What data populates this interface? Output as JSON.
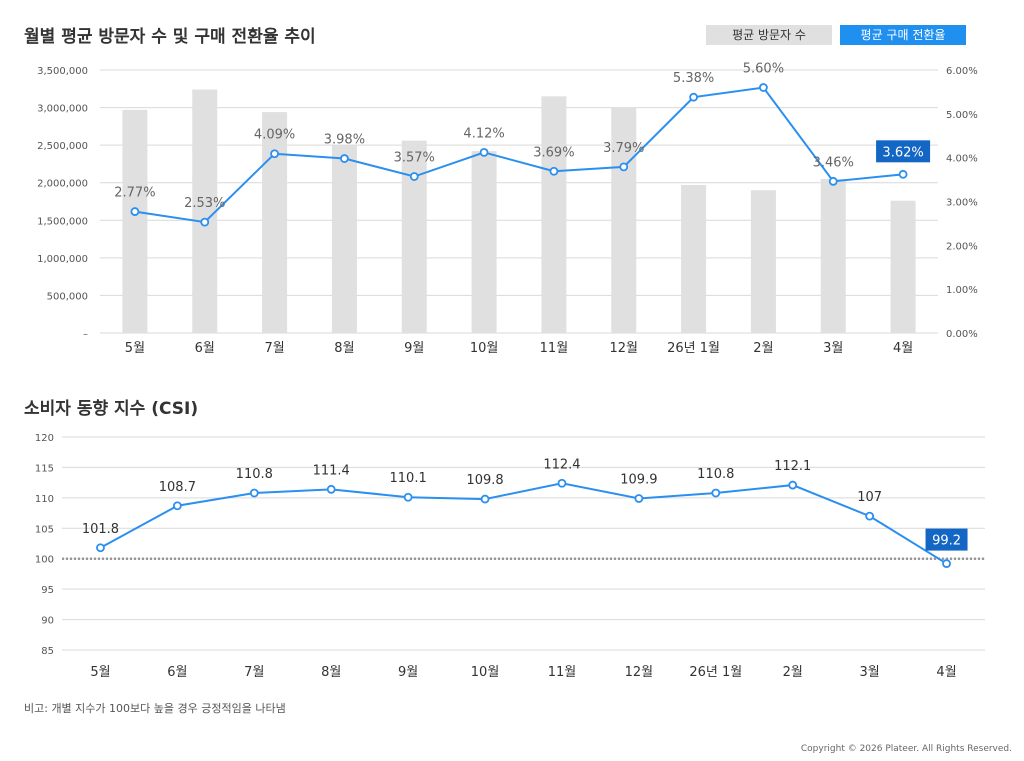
{
  "chart_data": [
    {
      "type": "bar",
      "title": "월별 평균 방문자 수 및 구매 전환율 추이",
      "categories": [
        "5월",
        "6월",
        "7월",
        "8월",
        "9월",
        "10월",
        "11월",
        "12월",
        "26년 1월",
        "2월",
        "3월",
        "4월"
      ],
      "legend": {
        "placement": "top-right"
      },
      "y_left_ticks": [
        "–",
        "500,000",
        "1,000,000",
        "1,500,000",
        "2,000,000",
        "2,500,000",
        "3,000,000",
        "3,500,000"
      ],
      "y_right_ticks": [
        "0.00%",
        "1.00%",
        "2.00%",
        "3.00%",
        "4.00%",
        "5.00%",
        "6.00%"
      ],
      "ylim_left": [
        0,
        3500000
      ],
      "ylim_right": [
        0,
        6
      ],
      "grid": true,
      "series": [
        {
          "name": "평균 방문자 수",
          "type": "bar",
          "axis": "left",
          "color": "#e0e0e0",
          "values": [
            2970000,
            3240000,
            2940000,
            2500000,
            2560000,
            2420000,
            3150000,
            3000000,
            1970000,
            1900000,
            2050000,
            1760000
          ]
        },
        {
          "name": "평균 구매 전환율",
          "type": "line",
          "axis": "right",
          "color": "#2b8ff0",
          "values": [
            2.77,
            2.53,
            4.09,
            3.98,
            3.57,
            4.12,
            3.69,
            3.79,
            5.38,
            5.6,
            3.46,
            3.62
          ],
          "labels": [
            "2.77%",
            "2.53%",
            "4.09%",
            "3.98%",
            "3.57%",
            "4.12%",
            "3.69%",
            "3.79%",
            "5.38%",
            "5.60%",
            "3.46%",
            "3.62%"
          ]
        }
      ]
    },
    {
      "type": "line",
      "title": "소비자 동향 지수 (CSI)",
      "categories": [
        "5월",
        "6월",
        "7월",
        "8월",
        "9월",
        "10월",
        "11월",
        "12월",
        "26년 1월",
        "2월",
        "3월",
        "4월"
      ],
      "y_ticks": [
        "85",
        "90",
        "95",
        "100",
        "105",
        "110",
        "115",
        "120"
      ],
      "ylim": [
        85,
        120
      ],
      "reference_line": 100,
      "grid": true,
      "series": [
        {
          "color": "#2b8ff0",
          "values": [
            101.8,
            108.7,
            110.8,
            111.4,
            110.1,
            109.8,
            112.4,
            109.9,
            110.8,
            112.1,
            107,
            99.2
          ],
          "labels": [
            "101.8",
            "108.7",
            "110.8",
            "111.4",
            "110.1",
            "109.8",
            "112.4",
            "109.9",
            "110.8",
            "112.1",
            "107",
            "99.2"
          ]
        }
      ]
    }
  ],
  "note": "비고: 개별 지수가 100보다 높을 경우 긍정적임을 나타냄",
  "copyright": "Copyright © 2026 Plateer. All Rights Reserved."
}
